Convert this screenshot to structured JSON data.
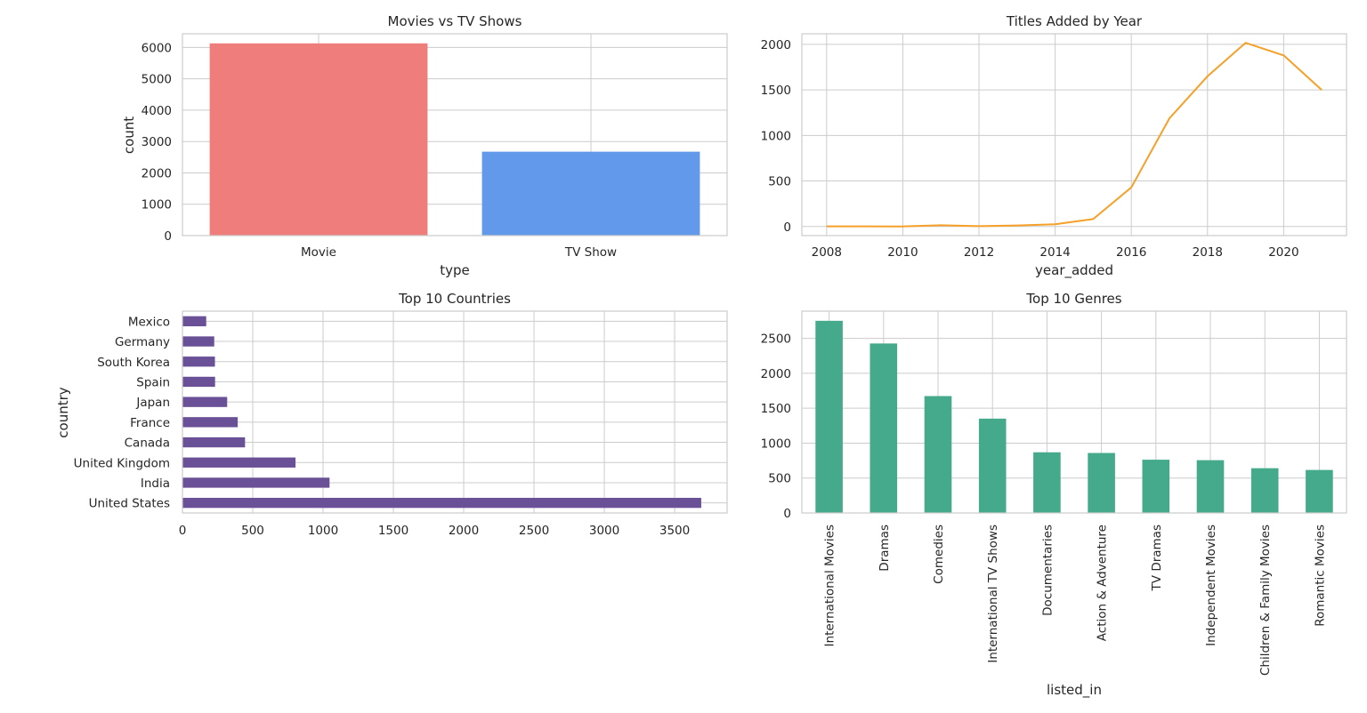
{
  "chart_data": [
    {
      "type": "bar",
      "title": "Movies vs TV Shows",
      "xlabel": "type",
      "ylabel": "count",
      "categories": [
        "Movie",
        "TV Show"
      ],
      "values": [
        6131,
        2676
      ],
      "colors": [
        "#ee7d7b",
        "#6399eb"
      ],
      "ylim": [
        0,
        6436
      ],
      "yticks": [
        0,
        1000,
        2000,
        3000,
        4000,
        5000,
        6000
      ],
      "grid": true
    },
    {
      "type": "line",
      "title": "Titles Added by Year",
      "xlabel": "year_added",
      "ylabel": "",
      "x": [
        2008,
        2009,
        2010,
        2011,
        2012,
        2013,
        2014,
        2015,
        2016,
        2017,
        2018,
        2019,
        2020,
        2021
      ],
      "values": [
        2,
        2,
        1,
        13,
        3,
        11,
        24,
        82,
        429,
        1188,
        1649,
        2016,
        1879,
        1498
      ],
      "color": "#f5a028",
      "xlim": [
        2007.35,
        2021.65
      ],
      "ylim": [
        -100,
        2116
      ],
      "xticks": [
        2008,
        2010,
        2012,
        2014,
        2016,
        2018,
        2020
      ],
      "yticks": [
        0,
        500,
        1000,
        1500,
        2000
      ],
      "grid": true
    },
    {
      "type": "bar",
      "orientation": "horizontal",
      "title": "Top 10 Countries",
      "xlabel": "",
      "ylabel": "country",
      "categories": [
        "United States",
        "India",
        "United Kingdom",
        "Canada",
        "France",
        "Japan",
        "Spain",
        "South Korea",
        "Germany",
        "Mexico"
      ],
      "values": [
        3689,
        1046,
        804,
        445,
        393,
        318,
        232,
        231,
        226,
        169
      ],
      "color": "#6a5096",
      "xlim": [
        0,
        3873
      ],
      "xticks": [
        0,
        500,
        1000,
        1500,
        2000,
        2500,
        3000,
        3500
      ],
      "grid": true
    },
    {
      "type": "bar",
      "title": "Top 10 Genres",
      "xlabel": "listed_in",
      "ylabel": "",
      "categories": [
        "International Movies",
        "Dramas",
        "Comedies",
        "International TV Shows",
        "Documentaries",
        "Action & Adventure",
        "TV Dramas",
        "Independent Movies",
        "Children & Family Movies",
        "Romantic Movies"
      ],
      "values": [
        2752,
        2427,
        1674,
        1351,
        869,
        859,
        763,
        756,
        641,
        616
      ],
      "color": "#44aa8b",
      "ylim": [
        0,
        2890
      ],
      "yticks": [
        0,
        500,
        1000,
        1500,
        2000,
        2500
      ],
      "grid": true
    }
  ]
}
